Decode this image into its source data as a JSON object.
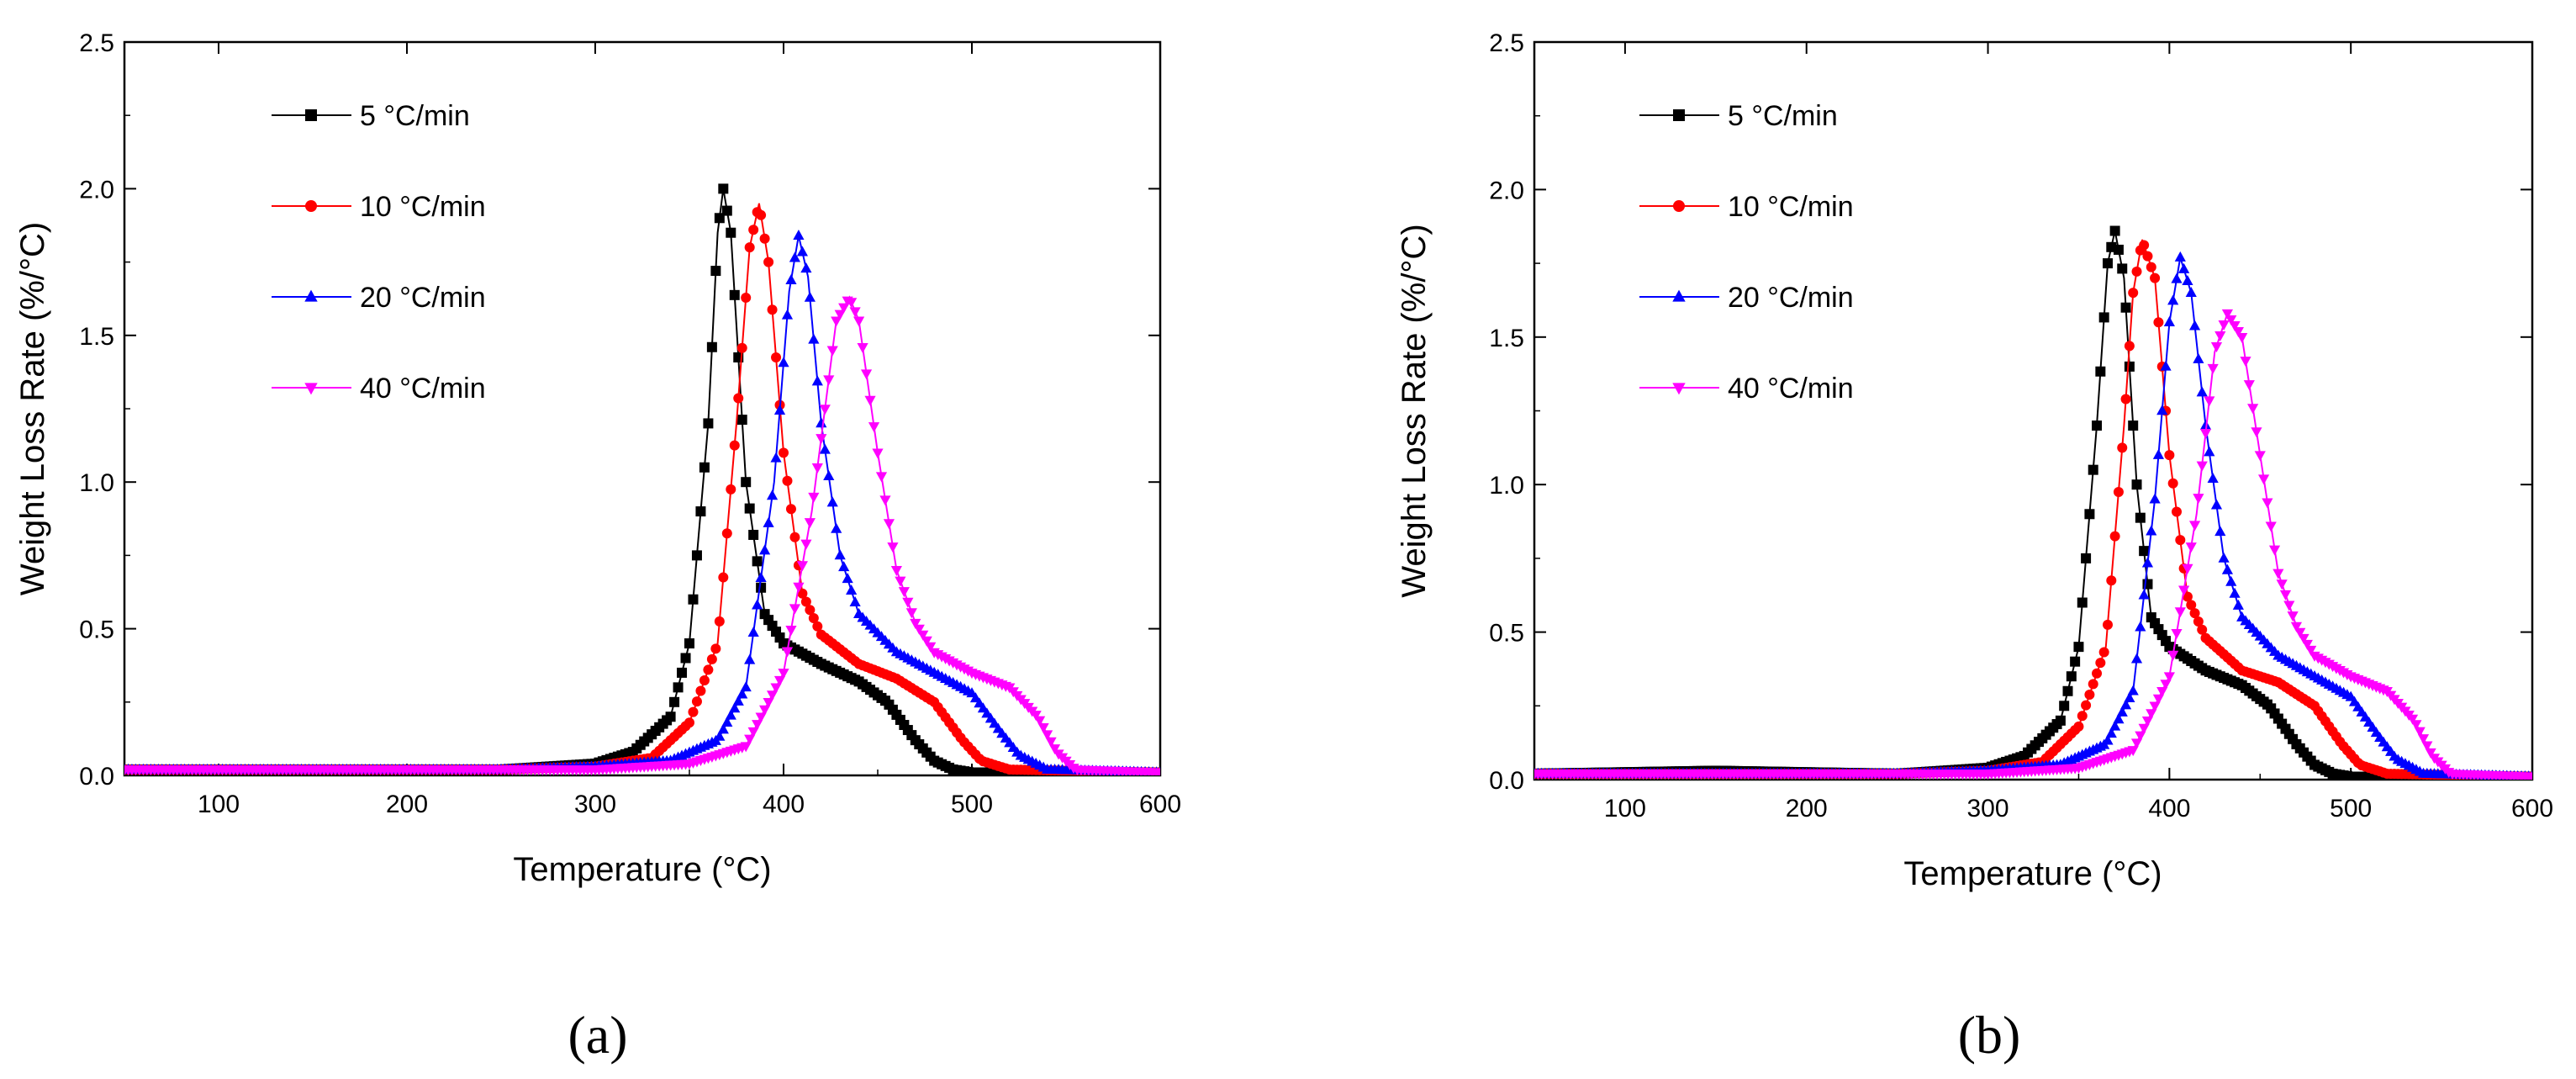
{
  "chart_data": [
    {
      "type": "line",
      "panel_label": "(a)",
      "title": "",
      "xlabel": "Temperature (°C)",
      "ylabel": "Weight Loss Rate (%/°C)",
      "xlim": [
        50,
        600
      ],
      "ylim": [
        0,
        2.5
      ],
      "xticks": [
        "100",
        "200",
        "300",
        "400",
        "500",
        "600"
      ],
      "yticks": [
        "0.0",
        "0.5",
        "1.0",
        "1.5",
        "2.0",
        "2.5"
      ],
      "legend_position": "top-left",
      "series": [
        {
          "name": "5 °C/min",
          "color": "#000000",
          "marker": "square",
          "x": [
            50,
            150,
            250,
            300,
            320,
            340,
            350,
            360,
            365,
            368,
            372,
            380,
            390,
            400,
            420,
            440,
            455,
            470,
            480,
            490,
            500,
            520,
            600
          ],
          "y": [
            0.02,
            0.02,
            0.02,
            0.04,
            0.08,
            0.2,
            0.45,
            1.2,
            1.85,
            2.0,
            1.85,
            1.0,
            0.55,
            0.45,
            0.38,
            0.32,
            0.25,
            0.12,
            0.05,
            0.02,
            0.01,
            0.01,
            0.01
          ]
        },
        {
          "name": "10 °C/min",
          "color": "#ff0000",
          "marker": "circle",
          "x": [
            50,
            150,
            250,
            300,
            330,
            350,
            365,
            375,
            382,
            387,
            392,
            400,
            410,
            420,
            440,
            460,
            480,
            495,
            505,
            520,
            600
          ],
          "y": [
            0.02,
            0.02,
            0.02,
            0.03,
            0.06,
            0.18,
            0.45,
            1.2,
            1.8,
            1.95,
            1.75,
            1.1,
            0.62,
            0.48,
            0.38,
            0.33,
            0.25,
            0.12,
            0.05,
            0.02,
            0.01
          ]
        },
        {
          "name": "20 °C/min",
          "color": "#0000ff",
          "marker": "triangle-up",
          "x": [
            50,
            150,
            250,
            300,
            340,
            365,
            380,
            395,
            403,
            408,
            413,
            420,
            430,
            440,
            460,
            480,
            500,
            515,
            525,
            540,
            600
          ],
          "y": [
            0.02,
            0.02,
            0.02,
            0.03,
            0.05,
            0.12,
            0.3,
            1.0,
            1.65,
            1.84,
            1.7,
            1.2,
            0.75,
            0.55,
            0.42,
            0.35,
            0.28,
            0.15,
            0.07,
            0.02,
            0.01
          ]
        },
        {
          "name": "40 °C/min",
          "color": "#ff00ff",
          "marker": "triangle-down",
          "x": [
            50,
            150,
            250,
            300,
            350,
            380,
            400,
            415,
            428,
            435,
            440,
            450,
            460,
            470,
            480,
            500,
            520,
            535,
            545,
            555,
            600
          ],
          "y": [
            0.02,
            0.02,
            0.02,
            0.02,
            0.04,
            0.1,
            0.35,
            0.9,
            1.55,
            1.63,
            1.55,
            1.1,
            0.7,
            0.52,
            0.42,
            0.35,
            0.3,
            0.2,
            0.08,
            0.02,
            0.01
          ]
        }
      ]
    },
    {
      "type": "line",
      "panel_label": "(b)",
      "title": "",
      "xlabel": "Temperature (°C)",
      "ylabel": "Weight Loss Rate (%/°C)",
      "xlim": [
        50,
        600
      ],
      "ylim": [
        0,
        2.5
      ],
      "xticks": [
        "100",
        "200",
        "300",
        "400",
        "500",
        "600"
      ],
      "yticks": [
        "0.0",
        "0.5",
        "1.0",
        "1.5",
        "2.0",
        "2.5"
      ],
      "legend_position": "top-left",
      "series": [
        {
          "name": "5 °C/min",
          "color": "#000000",
          "marker": "square",
          "x": [
            50,
            150,
            250,
            300,
            320,
            340,
            350,
            360,
            366,
            370,
            375,
            382,
            390,
            400,
            420,
            440,
            455,
            470,
            480,
            490,
            500,
            520,
            600
          ],
          "y": [
            0.02,
            0.03,
            0.02,
            0.04,
            0.08,
            0.2,
            0.45,
            1.2,
            1.75,
            1.86,
            1.7,
            1.0,
            0.55,
            0.45,
            0.37,
            0.32,
            0.25,
            0.12,
            0.05,
            0.02,
            0.01,
            0.01,
            0.01
          ]
        },
        {
          "name": "10 °C/min",
          "color": "#ff0000",
          "marker": "circle",
          "x": [
            50,
            150,
            250,
            300,
            330,
            350,
            365,
            375,
            380,
            385,
            392,
            400,
            410,
            420,
            440,
            460,
            480,
            495,
            505,
            520,
            600
          ],
          "y": [
            0.02,
            0.02,
            0.02,
            0.03,
            0.06,
            0.18,
            0.45,
            1.2,
            1.65,
            1.83,
            1.7,
            1.1,
            0.62,
            0.48,
            0.37,
            0.33,
            0.25,
            0.12,
            0.05,
            0.02,
            0.01
          ]
        },
        {
          "name": "20 °C/min",
          "color": "#0000ff",
          "marker": "triangle-up",
          "x": [
            50,
            150,
            250,
            300,
            340,
            365,
            380,
            392,
            400,
            406,
            412,
            420,
            430,
            440,
            460,
            480,
            500,
            515,
            525,
            540,
            600
          ],
          "y": [
            0.02,
            0.02,
            0.02,
            0.03,
            0.05,
            0.12,
            0.3,
            0.95,
            1.55,
            1.77,
            1.65,
            1.2,
            0.75,
            0.55,
            0.42,
            0.35,
            0.28,
            0.15,
            0.07,
            0.02,
            0.01
          ]
        },
        {
          "name": "40 °C/min",
          "color": "#ff00ff",
          "marker": "triangle-down",
          "x": [
            50,
            150,
            250,
            300,
            350,
            380,
            400,
            415,
            425,
            432,
            440,
            450,
            460,
            470,
            480,
            500,
            520,
            535,
            545,
            555,
            600
          ],
          "y": [
            0.02,
            0.02,
            0.02,
            0.02,
            0.04,
            0.1,
            0.35,
            0.9,
            1.45,
            1.58,
            1.5,
            1.1,
            0.7,
            0.52,
            0.42,
            0.35,
            0.3,
            0.2,
            0.08,
            0.02,
            0.01
          ]
        }
      ]
    }
  ]
}
